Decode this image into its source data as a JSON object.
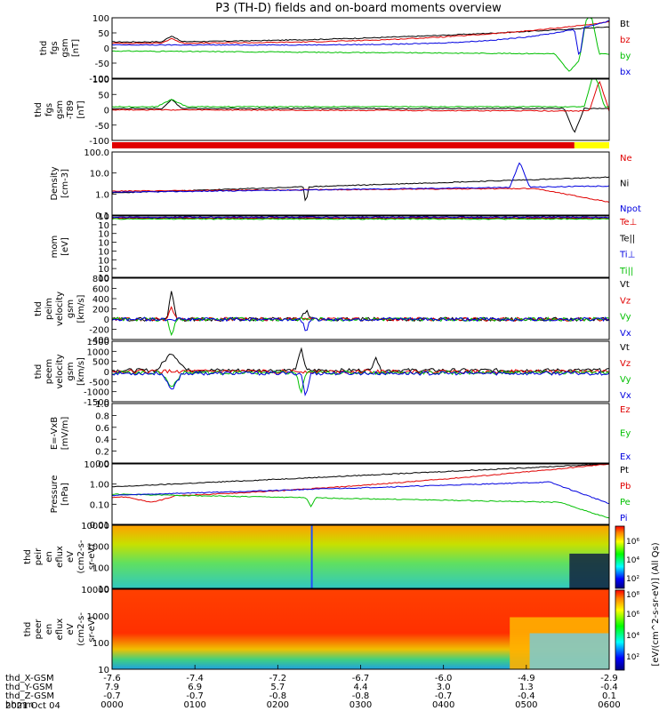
{
  "title": "P3 (TH-D) fields and on-board moments overview",
  "colors": {
    "black": "#000000",
    "red": "#e00000",
    "green": "#00c000",
    "blue": "#0000e0",
    "yellow": "#ffff00"
  },
  "panels": [
    {
      "id": "fgs-gsm",
      "ylabel": [
        "thd",
        "fgs",
        "gsm",
        "[nT]"
      ],
      "ticks": [
        "100",
        "50",
        "0",
        "-50",
        "-100"
      ],
      "legend": [
        {
          "text": "Bt",
          "color": "#000000"
        },
        {
          "text": "bz",
          "color": "#e00000"
        },
        {
          "text": "by",
          "color": "#00c000"
        },
        {
          "text": "bx",
          "color": "#0000e0"
        }
      ]
    },
    {
      "id": "fgs-gsm-t89",
      "ylabel": [
        "thd",
        "fgs",
        "gsm",
        "-T89",
        "[nT]"
      ],
      "ticks": [
        "100",
        "50",
        "0",
        "-50",
        "-100"
      ],
      "legend": []
    },
    {
      "id": "density",
      "ylabel": [
        "Density",
        "[cm-3]"
      ],
      "ticks": [
        "100.0",
        "10.0",
        "1.0",
        "0.1"
      ],
      "legend": [
        {
          "text": "Ne",
          "color": "#e00000"
        },
        {
          "text": "Ni",
          "color": "#000000"
        },
        {
          "text": "Npot",
          "color": "#0000e0"
        }
      ]
    },
    {
      "id": "temperature",
      "ylabel": [
        "mom",
        "[eV]"
      ],
      "ticks": [
        "10",
        "10",
        "10",
        "10",
        "10",
        "10",
        "10",
        "10"
      ],
      "legend": [
        {
          "text": "Te⊥",
          "color": "#e00000"
        },
        {
          "text": "Te||",
          "color": "#000000"
        },
        {
          "text": "Ti⊥",
          "color": "#0000e0"
        },
        {
          "text": "Ti||",
          "color": "#00c000"
        }
      ]
    },
    {
      "id": "peim-velocity",
      "ylabel": [
        "thd",
        "peim",
        "velocity",
        "gsm",
        "[km/s]"
      ],
      "ticks": [
        "800",
        "600",
        "400",
        "200",
        "0",
        "-200",
        "-400"
      ],
      "legend": [
        {
          "text": "Vt",
          "color": "#000000"
        },
        {
          "text": "Vz",
          "color": "#e00000"
        },
        {
          "text": "Vy",
          "color": "#00c000"
        },
        {
          "text": "Vx",
          "color": "#0000e0"
        }
      ]
    },
    {
      "id": "peem-velocity",
      "ylabel": [
        "thd",
        "peem",
        "velocity",
        "gsm",
        "[km/s]"
      ],
      "ticks": [
        "1500",
        "1000",
        "500",
        "0",
        "-500",
        "-1000",
        "-1500"
      ],
      "legend": [
        {
          "text": "Vt",
          "color": "#000000"
        },
        {
          "text": "Vz",
          "color": "#e00000"
        },
        {
          "text": "Vy",
          "color": "#00c000"
        },
        {
          "text": "Vx",
          "color": "#0000e0"
        }
      ]
    },
    {
      "id": "efield",
      "ylabel": [
        "E=-VxB",
        "[mV/m]"
      ],
      "ticks": [
        "1.0",
        "0.8",
        "0.6",
        "0.4",
        "0.2",
        "0.0"
      ],
      "legend": [
        {
          "text": "Ez",
          "color": "#e00000"
        },
        {
          "text": "Ey",
          "color": "#00c000"
        },
        {
          "text": "Ex",
          "color": "#0000e0"
        }
      ]
    },
    {
      "id": "pressure",
      "ylabel": [
        "Pressure",
        "[nPa]"
      ],
      "ticks": [
        "10.00",
        "1.00",
        "0.10",
        "0.01"
      ],
      "legend": [
        {
          "text": "Pt",
          "color": "#000000"
        },
        {
          "text": "Pb",
          "color": "#e00000"
        },
        {
          "text": "Pe",
          "color": "#00c000"
        },
        {
          "text": "Pi",
          "color": "#0000e0"
        }
      ]
    },
    {
      "id": "peir-spectrogram",
      "ylabel": [
        "thd",
        "peir",
        "en",
        "eflux",
        "eV",
        "(cm2-s-",
        "sr-eV)"
      ],
      "ticks": [
        "10000",
        "1000",
        "100",
        "10"
      ],
      "legend": []
    },
    {
      "id": "peer-spectrogram",
      "ylabel": [
        "thd",
        "peer",
        "en",
        "eflux",
        "eV",
        "(cm2-s-",
        "sr-eV)"
      ],
      "ticks": [
        "10000",
        "1000",
        "100",
        "10"
      ],
      "legend": []
    }
  ],
  "colorbar": {
    "label": "[eV/(cm^2-s-sr-eV)] (All Qs)",
    "peir_ticks": [
      "10⁶",
      "10⁴",
      "10²"
    ],
    "peer_ticks": [
      "10⁸",
      "10⁶",
      "10⁴",
      "10²"
    ]
  },
  "axis": {
    "rows": [
      {
        "label": "thd_X-GSM",
        "values": [
          "-7.6",
          "-7.4",
          "-7.2",
          "-6.7",
          "-6.0",
          "-4.9",
          "-2.9"
        ]
      },
      {
        "label": "thd_Y-GSM",
        "values": [
          "7.9",
          "6.9",
          "5.7",
          "4.4",
          "3.0",
          "1.3",
          "-0.4"
        ]
      },
      {
        "label": "thd_Z-GSM",
        "values": [
          "-0.7",
          "-0.7",
          "-0.8",
          "-0.8",
          "-0.7",
          "-0.4",
          "0.1"
        ]
      },
      {
        "label": "hhmm",
        "values": [
          "0000",
          "0100",
          "0200",
          "0300",
          "0400",
          "0500",
          "0600"
        ]
      }
    ],
    "date": "2021 Oct 04"
  },
  "chart_data": {
    "type": "line",
    "x_label": "hhmm",
    "x": [
      "0000",
      "0100",
      "0200",
      "0300",
      "0400",
      "0500",
      "0600"
    ],
    "series": [
      {
        "name": "Bt",
        "values": [
          20,
          18,
          22,
          30,
          45,
          80,
          100
        ]
      },
      {
        "name": "bz",
        "values": [
          15,
          15,
          20,
          30,
          45,
          70,
          100
        ]
      },
      {
        "name": "by",
        "values": [
          5,
          -10,
          -15,
          -15,
          -15,
          -20,
          -30
        ]
      },
      {
        "name": "bx",
        "values": [
          2,
          5,
          10,
          20,
          30,
          60,
          90
        ]
      }
    ],
    "ylim": [
      -100,
      100
    ],
    "ylabel": "thd fgs gsm [nT]"
  }
}
